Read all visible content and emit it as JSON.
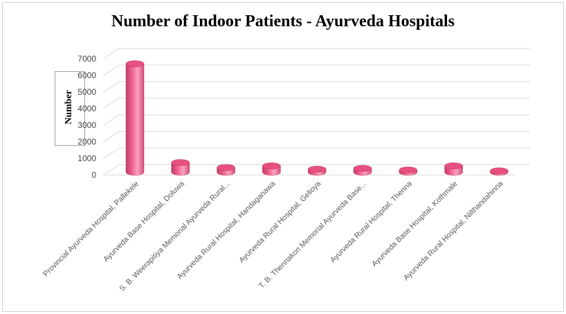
{
  "chart_data": {
    "type": "bar",
    "title": "Number of Indoor Patients - Ayurveda Hospitals",
    "ylabel": "Number",
    "xlabel": "",
    "categories": [
      "Provincial Ayurveda Hospital, Pallekele",
      "Ayurveda Base Hospital, Doluwa",
      "S. B. Weerapitiya Memorial Ayurveda Rural...",
      "Ayurveda Rural Hospital, Handaganawa",
      "Ayurveda Rural Hospital, Gelioya",
      "T. B. Thennakon Memorial Ayurveda Base...",
      "Ayurveda Rural Hospital, Thenna",
      "Ayurveda Base Hospital, Kothmale",
      "Ayurveda Rural Hospital, Nilthandahinna"
    ],
    "values": [
      6700,
      750,
      450,
      550,
      350,
      400,
      300,
      550,
      250
    ],
    "ylim": [
      0,
      7000
    ],
    "yticks": [
      "0",
      "1000",
      "2000",
      "3000",
      "4000",
      "5000",
      "6000",
      "7000"
    ],
    "grid": true,
    "legend": "none",
    "colors": {
      "bar": "#f0628f",
      "bar_light": "#f9a3bf",
      "bar_dark": "#c23a66",
      "grid": "#d9d9d9"
    }
  }
}
